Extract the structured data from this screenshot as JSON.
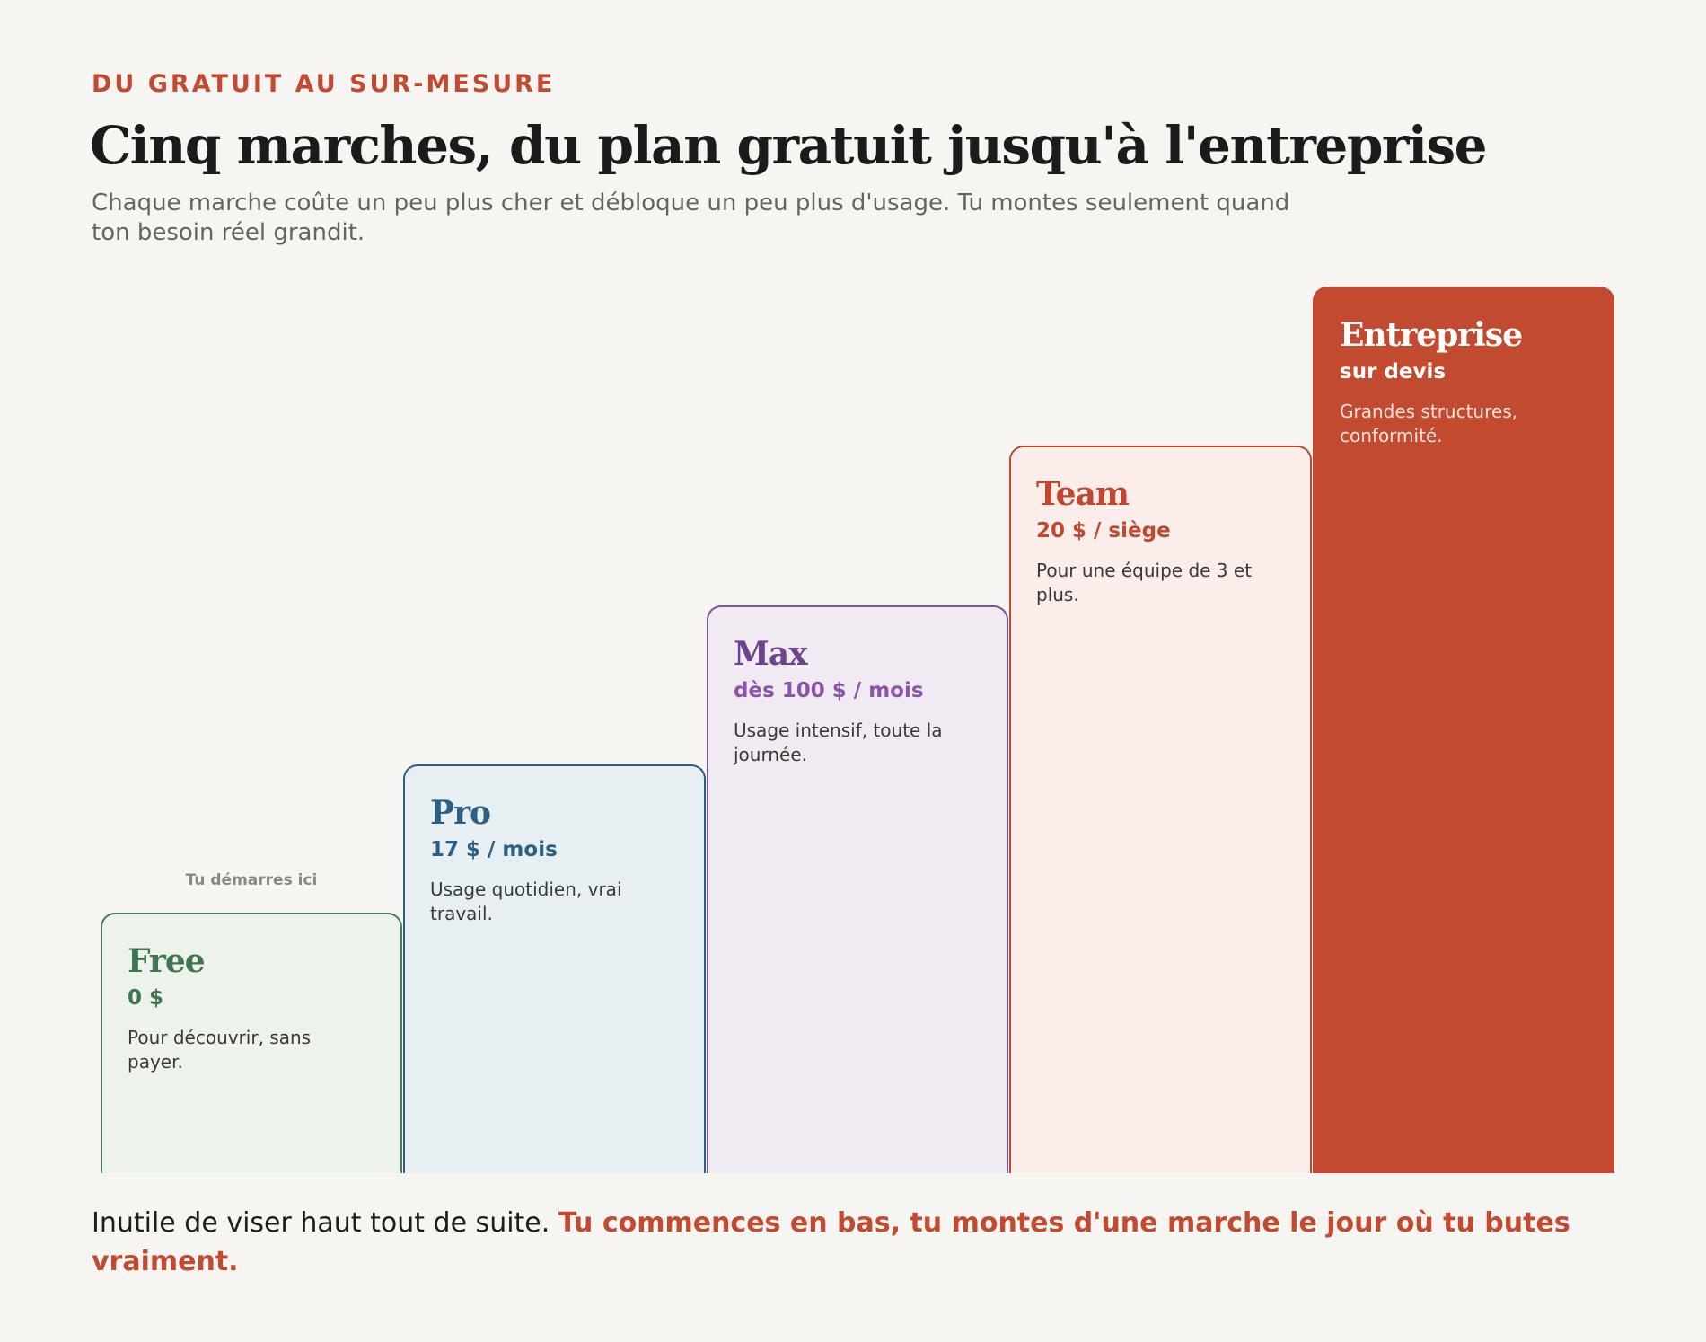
{
  "header": {
    "eyebrow": "DU GRATUIT AU SUR-MESURE",
    "title": "Cinq marches, du plan gratuit jusqu'à l'entreprise",
    "subtitle": "Chaque marche coûte un peu plus cher et débloque un peu plus d'usage. Tu montes seulement quand ton besoin réel grandit."
  },
  "start_note": "Tu démarres ici",
  "steps": [
    {
      "name": "Free",
      "price": "0 $",
      "description": "Pour découvrir, sans payer.",
      "color": "#3f7651"
    },
    {
      "name": "Pro",
      "price": "17 $ / mois",
      "description": "Usage quotidien, vrai travail.",
      "color": "#2c5f83"
    },
    {
      "name": "Max",
      "price": "dès 100 $ / mois",
      "description": "Usage intensif, toute la journée.",
      "color": "#8a55ab"
    },
    {
      "name": "Team",
      "price": "20 $ / siège",
      "description": "Pour une équipe de 3 et plus.",
      "color": "#c1482f"
    },
    {
      "name": "Entreprise",
      "price": "sur devis",
      "description": "Grandes structures, conformité.",
      "color": "#c24a31"
    }
  ],
  "footer": {
    "lead": "Inutile de viser haut tout de suite. ",
    "emphasis": "Tu commences en bas, tu montes d'une marche le jour où tu butes vraiment."
  }
}
